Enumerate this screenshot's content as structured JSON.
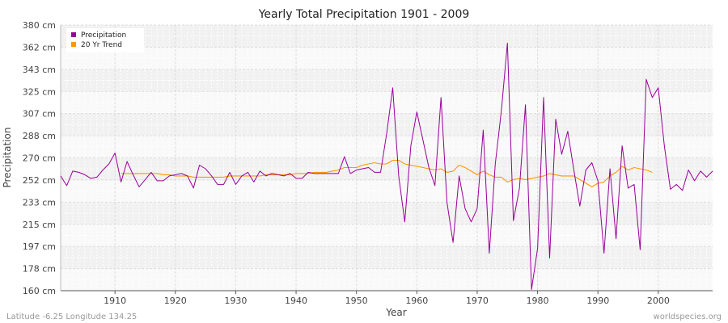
{
  "chart_data": {
    "type": "line",
    "title": "Yearly Total Precipitation 1901 - 2009",
    "xlabel": "Year",
    "ylabel": "Precipitation",
    "xlim": [
      1901,
      2009
    ],
    "ylim": [
      160,
      380
    ],
    "y_ticks": [
      "160 cm",
      "178 cm",
      "197 cm",
      "215 cm",
      "233 cm",
      "252 cm",
      "270 cm",
      "288 cm",
      "307 cm",
      "325 cm",
      "343 cm",
      "362 cm",
      "380 cm"
    ],
    "x_ticks": [
      "1910",
      "1920",
      "1930",
      "1940",
      "1950",
      "1960",
      "1970",
      "1980",
      "1990",
      "2000"
    ],
    "grid": true,
    "legend_position": "top-left",
    "series": [
      {
        "name": "Precipitation",
        "color": "#990099",
        "x": [
          1901,
          1902,
          1903,
          1904,
          1905,
          1906,
          1907,
          1908,
          1909,
          1910,
          1911,
          1912,
          1913,
          1914,
          1915,
          1916,
          1917,
          1918,
          1919,
          1920,
          1921,
          1922,
          1923,
          1924,
          1925,
          1926,
          1927,
          1928,
          1929,
          1930,
          1931,
          1932,
          1933,
          1934,
          1935,
          1936,
          1937,
          1938,
          1939,
          1940,
          1941,
          1942,
          1943,
          1944,
          1945,
          1946,
          1947,
          1948,
          1949,
          1950,
          1951,
          1952,
          1953,
          1954,
          1955,
          1956,
          1957,
          1958,
          1959,
          1960,
          1961,
          1962,
          1963,
          1964,
          1965,
          1966,
          1967,
          1968,
          1969,
          1970,
          1971,
          1972,
          1973,
          1974,
          1975,
          1976,
          1977,
          1978,
          1979,
          1980,
          1981,
          1982,
          1983,
          1984,
          1985,
          1986,
          1987,
          1988,
          1989,
          1990,
          1991,
          1992,
          1993,
          1994,
          1995,
          1996,
          1997,
          1998,
          1999,
          2000,
          2001,
          2002,
          2003,
          2004,
          2005,
          2006,
          2007,
          2008,
          2009
        ],
        "values": [
          255,
          247,
          259,
          258,
          256,
          253,
          254,
          260,
          265,
          274,
          250,
          267,
          256,
          246,
          252,
          258,
          251,
          251,
          255,
          256,
          257,
          255,
          245,
          264,
          261,
          255,
          248,
          248,
          258,
          248,
          255,
          258,
          250,
          259,
          255,
          257,
          256,
          255,
          257,
          253,
          253,
          258,
          257,
          257,
          257,
          257,
          257,
          271,
          257,
          260,
          261,
          262,
          258,
          258,
          290,
          328,
          255,
          217,
          280,
          308,
          285,
          262,
          247,
          320,
          233,
          200,
          255,
          228,
          217,
          228,
          293,
          191,
          265,
          309,
          365,
          218,
          245,
          314,
          161,
          195,
          320,
          187,
          302,
          273,
          292,
          260,
          230,
          260,
          266,
          251,
          191,
          261,
          203,
          280,
          245,
          248,
          194,
          335,
          320,
          328,
          280,
          244,
          248,
          243,
          260,
          251,
          259,
          254,
          259
        ]
      },
      {
        "name": "20 Yr Trend",
        "color": "#ff9900",
        "x": [
          1911,
          1912,
          1913,
          1914,
          1915,
          1916,
          1917,
          1918,
          1919,
          1920,
          1921,
          1922,
          1923,
          1924,
          1925,
          1926,
          1927,
          1928,
          1929,
          1930,
          1931,
          1932,
          1933,
          1934,
          1935,
          1936,
          1937,
          1938,
          1939,
          1940,
          1941,
          1942,
          1943,
          1944,
          1945,
          1946,
          1947,
          1948,
          1949,
          1950,
          1951,
          1952,
          1953,
          1954,
          1955,
          1956,
          1957,
          1958,
          1959,
          1960,
          1961,
          1962,
          1963,
          1964,
          1965,
          1966,
          1967,
          1968,
          1969,
          1970,
          1971,
          1972,
          1973,
          1974,
          1975,
          1976,
          1977,
          1978,
          1979,
          1980,
          1981,
          1982,
          1983,
          1984,
          1985,
          1986,
          1987,
          1988,
          1989,
          1990,
          1991,
          1992,
          1993,
          1994,
          1995,
          1996,
          1997,
          1998,
          1999
        ],
        "values": [
          257,
          257,
          257,
          257,
          257,
          257,
          257,
          256,
          256,
          255,
          255,
          255,
          254,
          254,
          254,
          254,
          254,
          254,
          255,
          255,
          255,
          255,
          255,
          255,
          256,
          256,
          256,
          256,
          256,
          257,
          257,
          257,
          258,
          258,
          258,
          259,
          260,
          262,
          262,
          262,
          264,
          265,
          266,
          265,
          265,
          268,
          268,
          265,
          264,
          263,
          262,
          261,
          260,
          261,
          258,
          259,
          264,
          262,
          259,
          256,
          259,
          256,
          254,
          254,
          250,
          252,
          253,
          252,
          253,
          254,
          255,
          257,
          256,
          255,
          255,
          255,
          252,
          249,
          246,
          249,
          250,
          255,
          258,
          263,
          260,
          262,
          261,
          260,
          258
        ]
      }
    ]
  },
  "footer": {
    "left": "Latitude -6.25 Longitude 134.25",
    "right": "worldspecies.org"
  }
}
